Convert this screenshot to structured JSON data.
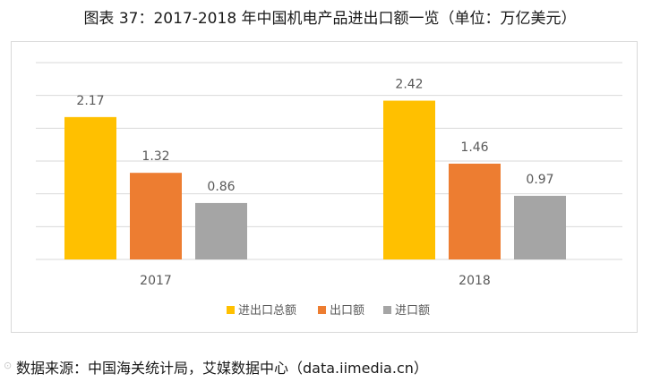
{
  "figure": {
    "title": "图表 37：2017-2018 年中国机电产品进出口额一览（单位：万亿美元）",
    "source": "数据来源：中国海关统计局，艾媒数据中心（data.iimedia.cn）",
    "watermark": "⊙"
  },
  "chart_data": {
    "type": "bar",
    "title": "2017-2018 年中国机电产品进出口额一览（单位：万亿美元）",
    "categories": [
      "2017",
      "2018"
    ],
    "series": [
      {
        "name": "进出口总额",
        "values": [
          2.17,
          2.42
        ],
        "color": "#FFC000"
      },
      {
        "name": "出口额",
        "values": [
          1.32,
          1.46
        ],
        "color": "#ED7D31"
      },
      {
        "name": "进口额",
        "values": [
          0.86,
          0.97
        ],
        "color": "#A5A5A5"
      }
    ],
    "data_labels": [
      [
        "2.17",
        "1.32",
        "0.86"
      ],
      [
        "2.42",
        "1.46",
        "0.97"
      ]
    ],
    "xlabel": "",
    "ylabel": "",
    "ylim": [
      0,
      3.0
    ],
    "grid": true,
    "legend_position": "bottom",
    "gridline_color": "#d9d9d9",
    "label_color": "#595959"
  }
}
